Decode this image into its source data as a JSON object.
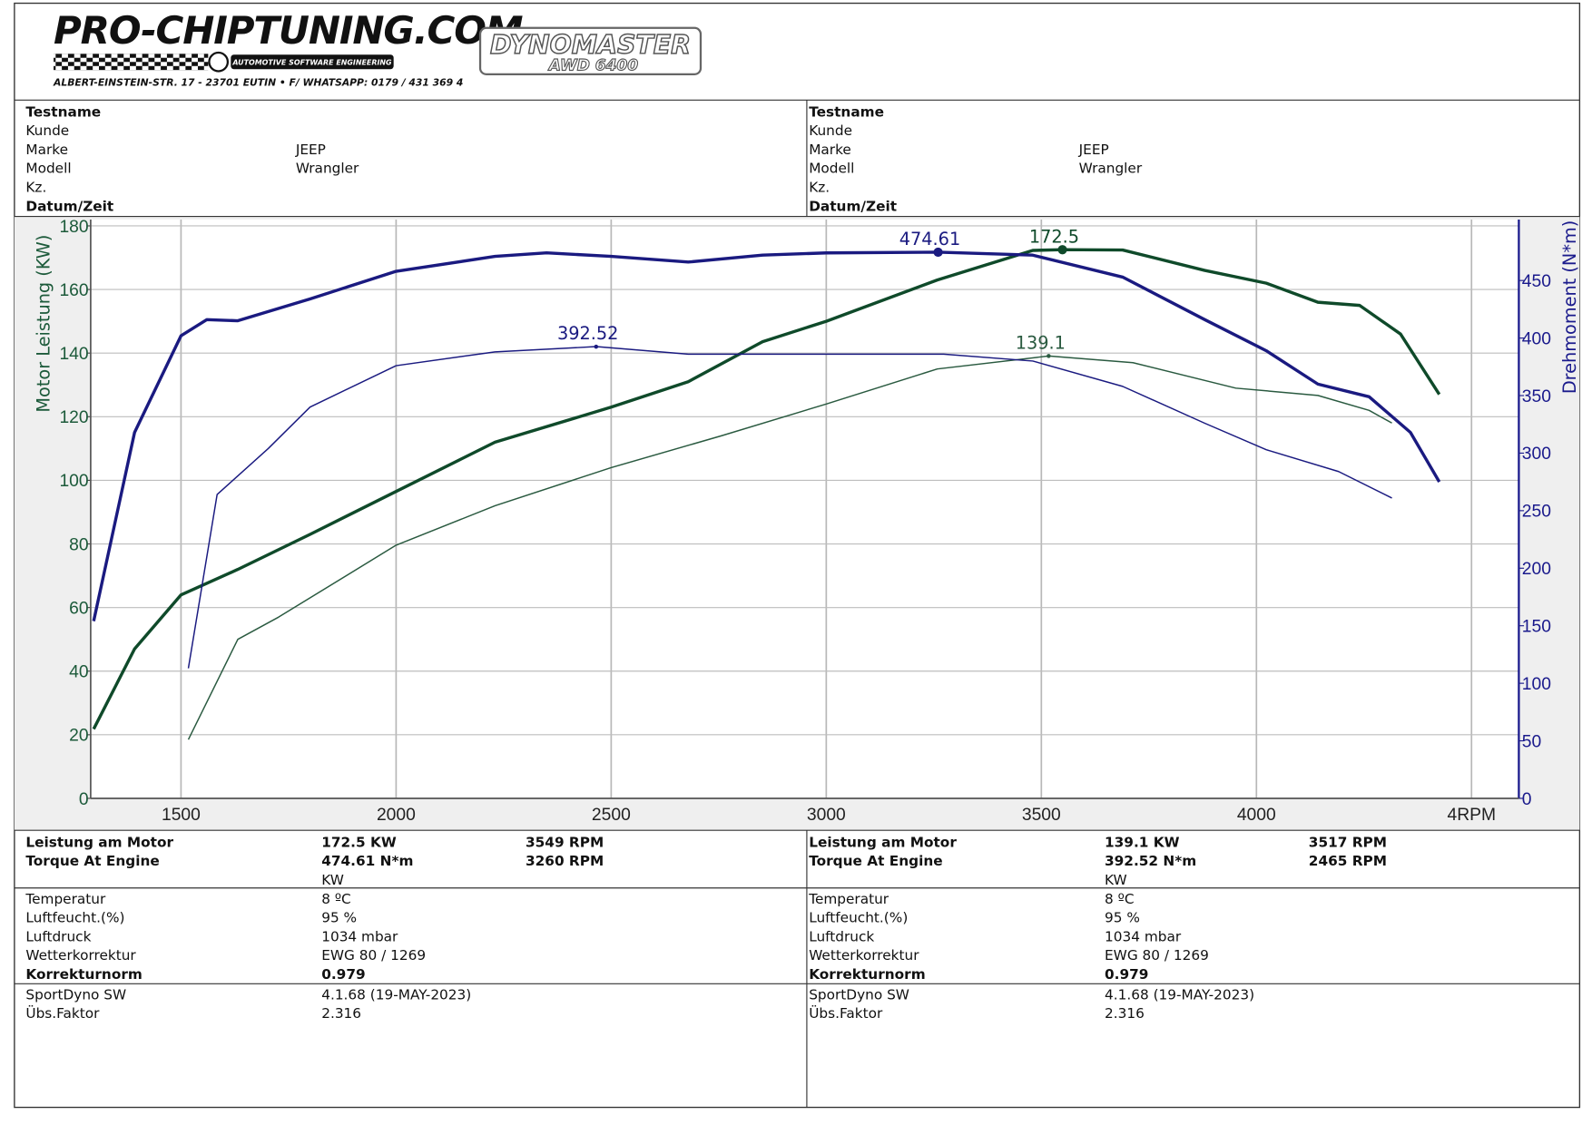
{
  "header": {
    "logo": "PRO-CHIPTUNING.COM",
    "tagline": "AUTOMOTIVE SOFTWARE ENGINEERING",
    "address": "ALBERT-EINSTEIN-STR. 17 - 23701 EUTIN • F/ WHATSAPP: 0179 / 431 369 4",
    "dyno": "DYNOMASTER",
    "dyno_model": "AWD 6400"
  },
  "info": {
    "left": [
      {
        "label": "Testname",
        "bold": true
      },
      {
        "label": "Kunde"
      },
      {
        "label": "Marke",
        "value": "JEEP"
      },
      {
        "label": "Modell",
        "value": "Wrangler"
      },
      {
        "label": "Kz."
      },
      {
        "label": "Datum/Zeit",
        "bold": true
      }
    ],
    "right": [
      {
        "label": "Testname",
        "bold": true
      },
      {
        "label": "Kunde"
      },
      {
        "label": "Marke",
        "value": "JEEP"
      },
      {
        "label": "Modell",
        "value": "Wrangler"
      },
      {
        "label": "Kz."
      },
      {
        "label": "Datum/Zeit",
        "bold": true
      }
    ]
  },
  "chart_data": {
    "type": "line",
    "ylabel": "Motor Leistung (KW)",
    "y2label": "Drehmoment (N*m)",
    "xlim": [
      1290,
      4610
    ],
    "ylim": [
      0,
      182
    ],
    "y2lim": [
      0,
      503
    ],
    "xticks": [
      1500,
      2000,
      2500,
      3000,
      3500,
      4000,
      {
        "value": 4500,
        "label": "4RPM"
      }
    ],
    "yticks": [
      0,
      20,
      40,
      60,
      80,
      100,
      120,
      140,
      160,
      180
    ],
    "y2ticks": [
      0,
      50,
      100,
      150,
      200,
      250,
      300,
      350,
      400,
      450
    ],
    "grid": true,
    "ycolor": "#1c5a3a",
    "y2color": "#1a1a8c",
    "series": [
      {
        "color": "#0f4a2a",
        "width": 3,
        "x": [
          1297,
          1392,
          1500,
          1632,
          1800,
          2000,
          2230,
          2500,
          2679,
          2852,
          3000,
          3258,
          3480,
          3549,
          3689,
          3880,
          4023,
          4143,
          4240,
          4335,
          4425
        ],
        "values": [
          21.8,
          47,
          64,
          72,
          83,
          96.5,
          112,
          123,
          131,
          143.6,
          150,
          163,
          172.3,
          172.5,
          172.4,
          166,
          162,
          156,
          155,
          146,
          127
        ]
      },
      {
        "color": "#1a1a80",
        "width": 3,
        "axis": "y2",
        "x": [
          1297,
          1392,
          1500,
          1560,
          1632,
          1800,
          2000,
          2230,
          2350,
          2500,
          2679,
          2852,
          3000,
          3260,
          3480,
          3689,
          3880,
          4023,
          4143,
          4262,
          4358,
          4425
        ],
        "values": [
          154,
          318,
          402,
          416,
          415,
          434,
          458,
          471,
          474,
          471,
          466,
          472,
          474,
          474.61,
          472,
          453,
          416,
          389,
          360,
          349,
          318,
          275
        ]
      },
      {
        "color": "#2a5a40",
        "width": 1.3,
        "x": [
          1517,
          1632,
          1727,
          2000,
          2230,
          2500,
          2756,
          3000,
          3258,
          3517,
          3713,
          3952,
          4143,
          4262,
          4315
        ],
        "values": [
          18.5,
          50,
          57,
          79.6,
          92,
          104,
          114,
          124,
          135,
          139.1,
          137,
          129,
          126.7,
          122,
          118
        ]
      },
      {
        "color": "#1a1a80",
        "width": 1.3,
        "axis": "y2",
        "x": [
          1517,
          1584,
          1703,
          1800,
          2000,
          2230,
          2465,
          2679,
          2995,
          3273,
          3480,
          3689,
          3880,
          4023,
          4191,
          4315
        ],
        "values": [
          113,
          264,
          304,
          340,
          376,
          388,
          392.52,
          386,
          386,
          386,
          380,
          358,
          326,
          303,
          284,
          261
        ]
      }
    ],
    "annotations": [
      {
        "series": 1,
        "axis": "y2",
        "x": 3260,
        "y": 474.61
      },
      {
        "series": 0,
        "x": 3549,
        "y": 172.5
      },
      {
        "series": 3,
        "axis": "y2",
        "x": 2465,
        "y": 392.52
      },
      {
        "series": 2,
        "x": 3517,
        "y": 139.1
      }
    ]
  },
  "results": {
    "left": [
      {
        "label": "Leistung am Motor",
        "value": "172.5 KW",
        "rpm": "3549 RPM"
      },
      {
        "label": "Torque At Engine",
        "value": "474.61 N*m",
        "rpm": "3260 RPM"
      },
      {
        "unit": "KW"
      }
    ],
    "right": [
      {
        "label": "Leistung am Motor",
        "value": "139.1 KW",
        "rpm": "3517 RPM"
      },
      {
        "label": "Torque At Engine",
        "value": "392.52 N*m",
        "rpm": "2465 RPM"
      },
      {
        "unit": "KW"
      }
    ]
  },
  "conditions": {
    "left": [
      {
        "label": "Temperatur",
        "value": "8 ºC"
      },
      {
        "label": "Luftfeucht.(%)",
        "value": "95 %"
      },
      {
        "label": "Luftdruck",
        "value": "1034 mbar"
      },
      {
        "label": "Wetterkorrektur",
        "value": "EWG 80 / 1269"
      },
      {
        "label": "Korrekturnorm",
        "value": "0.979",
        "bold": true
      }
    ],
    "right": [
      {
        "label": "Temperatur",
        "value": "8 ºC"
      },
      {
        "label": "Luftfeucht.(%)",
        "value": "95 %"
      },
      {
        "label": "Luftdruck",
        "value": "1034 mbar"
      },
      {
        "label": "Wetterkorrektur",
        "value": "EWG 80 / 1269"
      },
      {
        "label": "Korrekturnorm",
        "value": "0.979",
        "bold": true
      }
    ]
  },
  "software": {
    "left": [
      {
        "label": "SportDyno SW",
        "value": "4.1.68 (19-MAY-2023)"
      },
      {
        "label": "Übs.Faktor",
        "value": "2.316"
      }
    ],
    "right": [
      {
        "label": "SportDyno SW",
        "value": "4.1.68 (19-MAY-2023)"
      },
      {
        "label": "Übs.Faktor",
        "value": "2.316"
      }
    ]
  }
}
